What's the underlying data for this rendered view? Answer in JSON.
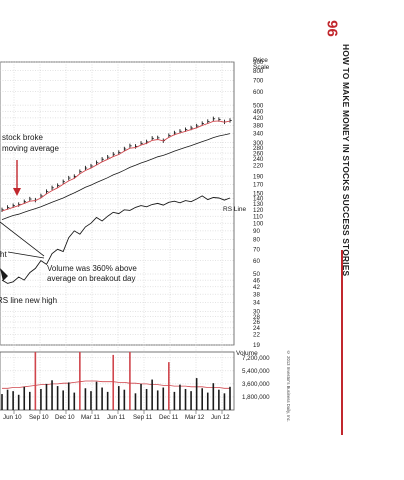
{
  "page": {
    "number": "96",
    "running_title": "HOW TO MAKE MONEY IN STOCKS SUCCESS STORIES",
    "copyright": "© 2013 Investor's Business Daily, Inc."
  },
  "annotations": [
    {
      "id": "stock-broke",
      "lines": [
        "stock broke",
        "moving average"
      ]
    },
    {
      "id": "volume-note",
      "lines": [
        "Volume was 360% above",
        "average on breakout day"
      ]
    },
    {
      "id": "rs-high",
      "lines": [
        "RS line new high"
      ]
    },
    {
      "id": "fragment-ht",
      "lines": [
        "ht"
      ]
    }
  ],
  "chart_data": {
    "type": "line",
    "title": "",
    "price_axis": {
      "label": [
        "Price",
        "Scale"
      ],
      "ticks": [
        900,
        800,
        700,
        600,
        500,
        460,
        420,
        380,
        340,
        300,
        280,
        260,
        240,
        220,
        190,
        170,
        150,
        140,
        130,
        120,
        110,
        100,
        90,
        80,
        70,
        60,
        50,
        46,
        42,
        38,
        34,
        30,
        28,
        26,
        24,
        22,
        19
      ],
      "scale": "log",
      "range": [
        19,
        900
      ]
    },
    "volume_axis": {
      "label": "Volume",
      "ticks": [
        "7,200,000",
        "5,400,000",
        "3,600,000",
        "1,800,000"
      ],
      "tick_values": [
        7200000,
        5400000,
        3600000,
        1800000
      ],
      "range": [
        0,
        8000000
      ]
    },
    "x_ticks": [
      "Jun 10",
      "Sep 10",
      "Dec 10",
      "Mar 11",
      "Jun 11",
      "Sep 11",
      "Dec 11",
      "Mar 12",
      "Jun 12"
    ],
    "rs_line_label": "RS Line",
    "series": [
      {
        "name": "",
        "kind": "price",
        "values": [
          120,
          124,
          127,
          129,
          134,
          139,
          137,
          145,
          154,
          162,
          167,
          176,
          185,
          189,
          202,
          212,
          218,
          228,
          239,
          246,
          256,
          262,
          275,
          287,
          285,
          297,
          303,
          318,
          320,
          308,
          330,
          342,
          350,
          358,
          366,
          376,
          389,
          400,
          415,
          411,
          398,
          406
        ]
      },
      {
        "name": "",
        "kind": "moving-average-short",
        "values": [
          118,
          121,
          124,
          127,
          131,
          135,
          136,
          141,
          149,
          156,
          162,
          170,
          178,
          184,
          196,
          205,
          212,
          221,
          231,
          239,
          248,
          255,
          267,
          278,
          280,
          290,
          297,
          309,
          313,
          307,
          322,
          334,
          342,
          350,
          358,
          367,
          379,
          389,
          401,
          403,
          396,
          402
        ]
      },
      {
        "name": "",
        "kind": "moving-average-long",
        "values": [
          105,
          108,
          111,
          113,
          116,
          119,
          122,
          125,
          129,
          133,
          137,
          141,
          146,
          151,
          157,
          163,
          168,
          174,
          180,
          186,
          193,
          199,
          206,
          214,
          220,
          227,
          233,
          240,
          247,
          252,
          259,
          267,
          274,
          281,
          288,
          296,
          304,
          312,
          321,
          328,
          333,
          339
        ]
      },
      {
        "name": "RS Line",
        "kind": "rs-line",
        "values": [
          46,
          44,
          45,
          48,
          46,
          51,
          54,
          60,
          57,
          66,
          70,
          68,
          82,
          90,
          86,
          95,
          100,
          108,
          103,
          110,
          116,
          114,
          120,
          119,
          124,
          127,
          125,
          129,
          131,
          128,
          133,
          135,
          132,
          136,
          134,
          139,
          145,
          138,
          142,
          141,
          137,
          141
        ]
      },
      {
        "name": "",
        "kind": "volume",
        "values": [
          2200000,
          2800000,
          2600000,
          2100000,
          3200000,
          2500000,
          8000000,
          2900000,
          3600000,
          4100000,
          3300000,
          2700000,
          3800000,
          2400000,
          8000000,
          3000000,
          2600000,
          3900000,
          3100000,
          2500000,
          7600000,
          3300000,
          2800000,
          8000000,
          2300000,
          3600000,
          2900000,
          4200000,
          2700000,
          3100000,
          6600000,
          2500000,
          3500000,
          2900000,
          2600000,
          4400000,
          3000000,
          2400000,
          3700000,
          2800000,
          2300000,
          3200000
        ]
      },
      {
        "name": "",
        "kind": "volume-average",
        "values": [
          3000000,
          3000000,
          3100000,
          3100000,
          3200000,
          3300000,
          3400000,
          3500000,
          3500000,
          3600000,
          3600000,
          3700000,
          3700000,
          3800000,
          3900000,
          4000000,
          4000000,
          4000000,
          3900000,
          3900000,
          3900000,
          3800000,
          3800000,
          3700000,
          3700000,
          3600000,
          3600000,
          3500000,
          3500000,
          3400000,
          3400000,
          3300000,
          3300000,
          3300000,
          3200000,
          3200000,
          3200000,
          3100000,
          3100000,
          3100000,
          3000000,
          3000000
        ]
      }
    ],
    "grid": true,
    "legend": "none"
  }
}
